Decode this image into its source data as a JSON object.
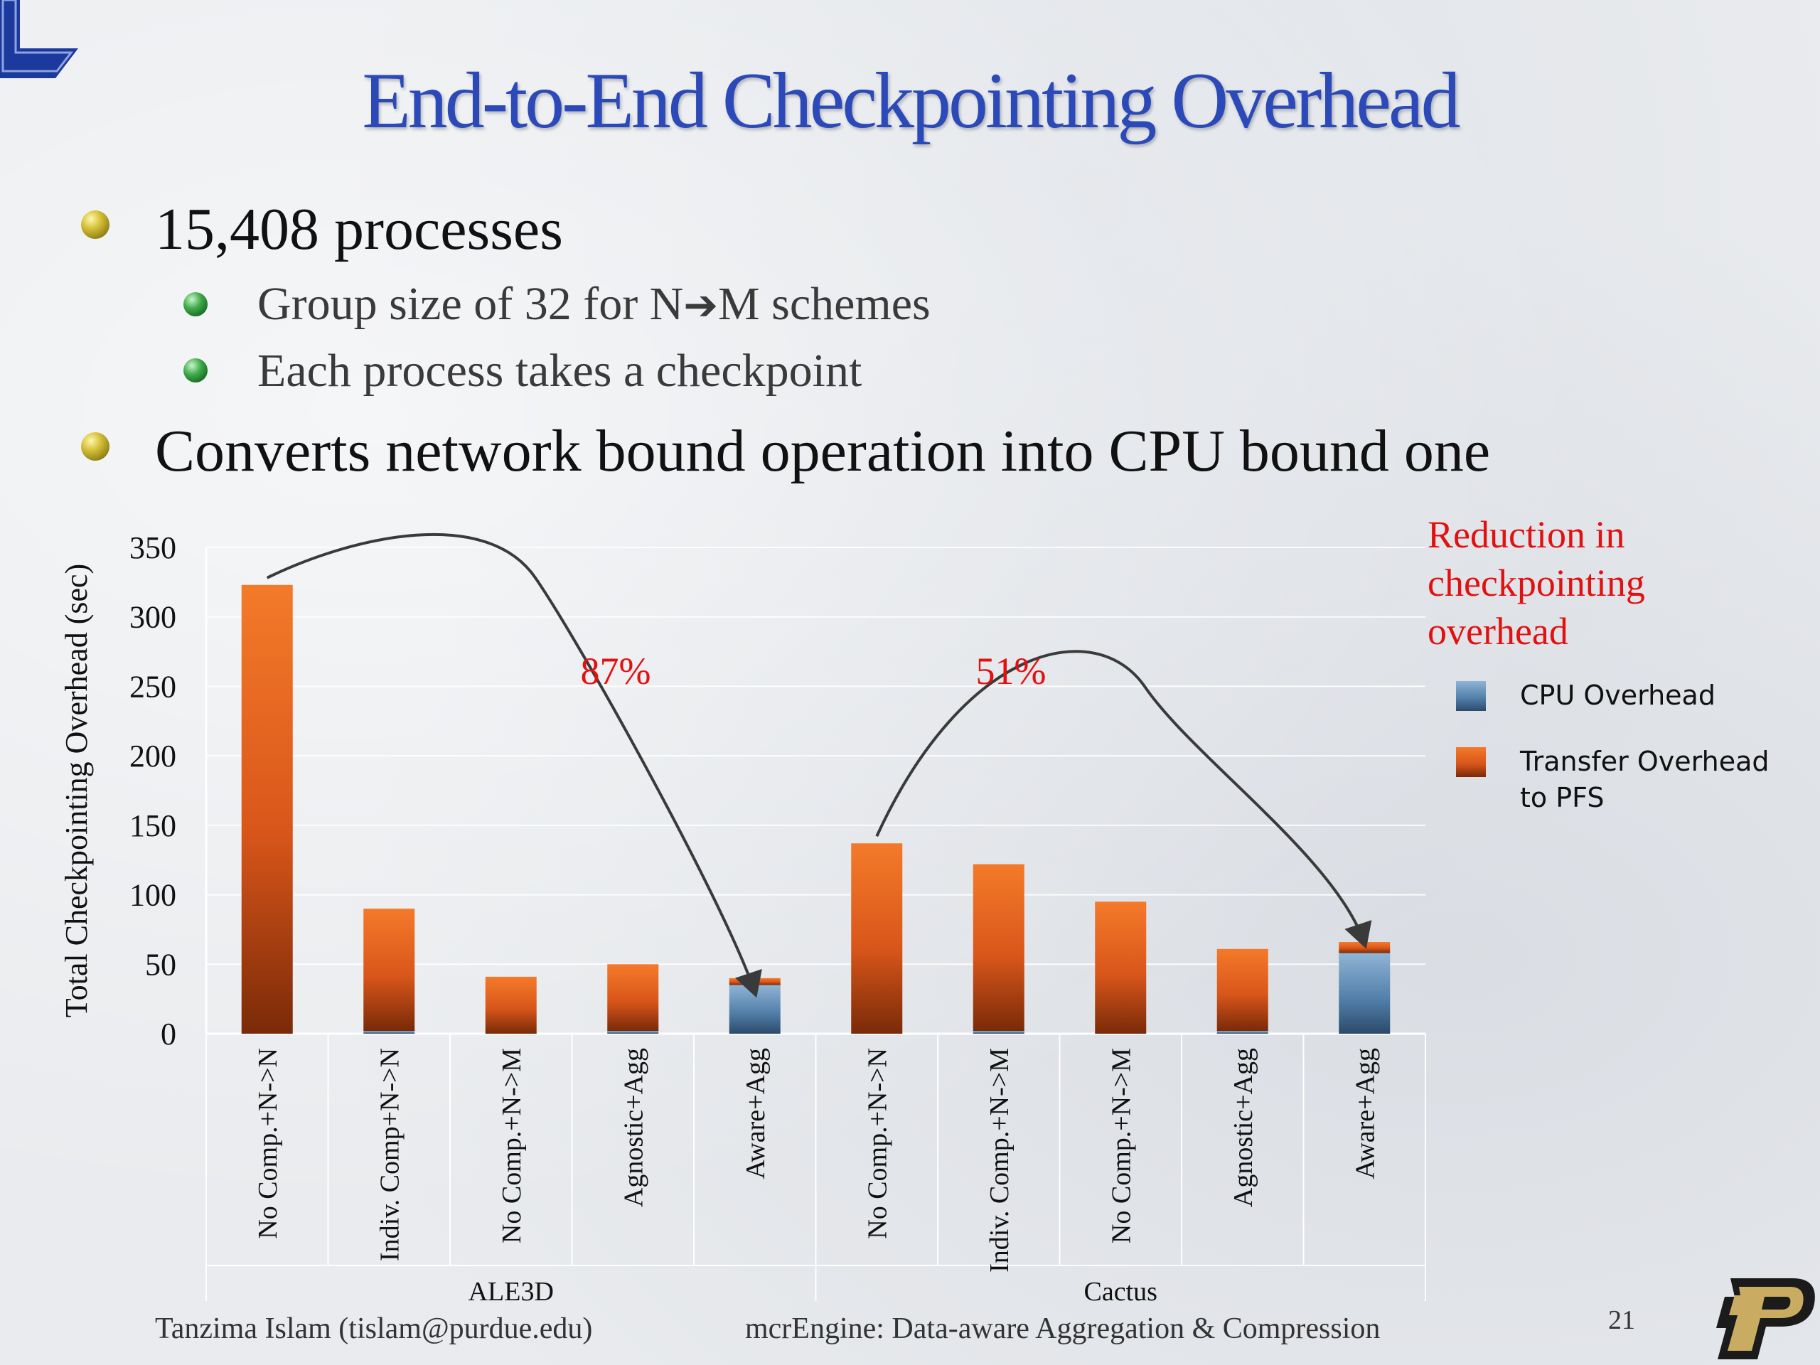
{
  "slide": {
    "title": "End-to-End Checkpointing Overhead",
    "bullets": [
      {
        "text": "15,408 processes",
        "level": 1
      },
      {
        "text_before": "Group size of 32 for N",
        "arrow": "➔",
        "text_after": "M schemes",
        "level": 2
      },
      {
        "text": "Each process takes a checkpoint",
        "level": 2
      },
      {
        "text": "Converts network bound operation into CPU bound one",
        "level": 1
      }
    ],
    "footer_left": "Tanzima Islam (tislam@purdue.edu)",
    "footer_center": "mcrEngine: Data-aware Aggregation & Compression",
    "page_number": "21",
    "logo": "P"
  },
  "chart_data": {
    "type": "bar",
    "stacked": true,
    "ylabel": "Total Checkpointing Overhead (sec)",
    "ylim": [
      0,
      350
    ],
    "yticks": [
      0,
      50,
      100,
      150,
      200,
      250,
      300,
      350
    ],
    "grid": true,
    "categories": [
      "No Comp.+N->N",
      "Indiv. Comp+N->N",
      "No Comp.+N->M",
      "Agnostic+Agg",
      "Aware+Agg",
      "No Comp.+N->N",
      "Indiv. Comp.+N->M",
      "No Comp.+N->M",
      "Agnostic+Agg",
      "Aware+Agg"
    ],
    "groups": [
      {
        "name": "ALE3D",
        "start": 0,
        "count": 5
      },
      {
        "name": "Cactus",
        "start": 5,
        "count": 5
      }
    ],
    "series": [
      {
        "name": "CPU Overhead",
        "color": "#5d8fbc",
        "values": [
          0,
          2,
          0,
          2,
          35,
          0,
          2,
          0,
          2,
          58
        ]
      },
      {
        "name": "Transfer Overhead to PFS",
        "color": "#e8641a",
        "values": [
          323,
          88,
          41,
          48,
          5,
          137,
          120,
          95,
          59,
          8
        ]
      }
    ],
    "legend_position": "right",
    "annotations": {
      "side_note": [
        "Reduction in",
        "checkpointing",
        "overhead"
      ],
      "reductions": [
        {
          "label": "87%",
          "from": 0,
          "to": 4
        },
        {
          "label": "51%",
          "from": 5,
          "to": 9
        }
      ],
      "color": "#e31010"
    }
  }
}
